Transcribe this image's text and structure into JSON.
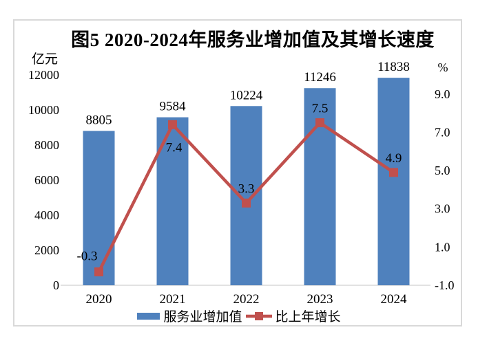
{
  "figure": {
    "title": "图5 2020-2024年服务业增加值及其增长速度"
  },
  "legend": {
    "bar_label": "服务业增加值",
    "line_label": "比上年增长"
  },
  "colors": {
    "bar": "#4F81BD",
    "line": "#C0504D",
    "marker": "#C0504D",
    "axis_line": "#D9D9D9",
    "frame": "#D9D9D9",
    "text": "#000000"
  },
  "chart_data": {
    "type": "combo",
    "title": "图5 2020-2024年服务业增加值及其增长速度",
    "categories": [
      "2020",
      "2021",
      "2022",
      "2023",
      "2024"
    ],
    "series": [
      {
        "name": "服务业增加值",
        "type": "bar",
        "axis": "left",
        "color": "#4F81BD",
        "values": [
          8805,
          9584,
          10224,
          11246,
          11838
        ],
        "data_labels": [
          "8805",
          "9584",
          "10224",
          "11246",
          "11838"
        ]
      },
      {
        "name": "比上年增长",
        "type": "line",
        "axis": "right",
        "color": "#C0504D",
        "values": [
          -0.3,
          7.4,
          3.3,
          7.5,
          4.9
        ],
        "data_labels": [
          "-0.3",
          "7.4",
          "3.3",
          "7.5",
          "4.9"
        ]
      }
    ],
    "left_axis": {
      "label": "亿元",
      "min": 0,
      "max": 12000,
      "tick_step": 2000,
      "ticks": [
        0,
        2000,
        4000,
        6000,
        8000,
        10000,
        12000
      ]
    },
    "right_axis": {
      "label": "%",
      "min": -1.0,
      "max": 10.0,
      "tick_step": 2.0,
      "ticks": [
        -1.0,
        1.0,
        3.0,
        5.0,
        7.0,
        9.0
      ]
    },
    "grid": false,
    "legend_position": "bottom",
    "line_label_placement": [
      "left-above",
      "below",
      "above",
      "above",
      "above"
    ]
  }
}
